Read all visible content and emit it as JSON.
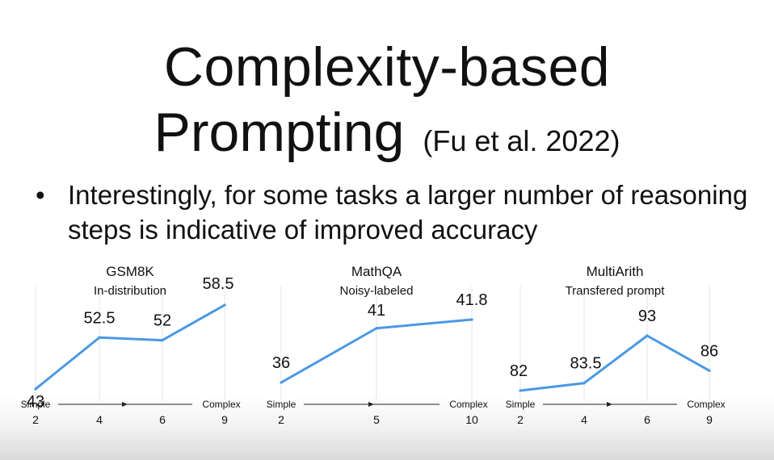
{
  "slide": {
    "title_line1": "Complexity-based",
    "title_line2": "Prompting",
    "citation": "(Fu et al. 2022)",
    "bullet_symbol": "•",
    "bullet_text": "Interestingly, for some tasks a larger number of reasoning steps is indicative of improved accuracy"
  },
  "colors": {
    "line": "#4a98e6",
    "gridline": "#e6e6e6",
    "text": "#111111"
  },
  "chart_data": [
    {
      "type": "line",
      "title": "GSM8K",
      "subtitle": "In-distribution",
      "x": [
        "2",
        "4",
        "6",
        "9"
      ],
      "values": [
        43,
        52.5,
        52,
        58.5
      ],
      "value_labels": [
        "43",
        "52.5",
        "52",
        "58.5"
      ],
      "axis_left_label": "Simple",
      "axis_right_label": "Complex",
      "grid": true
    },
    {
      "type": "line",
      "title": "MathQA",
      "subtitle": "Noisy-labeled",
      "x": [
        "2",
        "5",
        "10"
      ],
      "values": [
        36,
        41,
        41.8
      ],
      "value_labels": [
        "36",
        "41",
        "41.8"
      ],
      "axis_left_label": "Simple",
      "axis_right_label": "Complex",
      "grid": true
    },
    {
      "type": "line",
      "title": "MultiArith",
      "subtitle": "Transfered prompt",
      "x": [
        "2",
        "4",
        "6",
        "9"
      ],
      "values": [
        82,
        83.5,
        93,
        86
      ],
      "value_labels": [
        "82",
        "83.5",
        "93",
        "86"
      ],
      "axis_left_label": "Simple",
      "axis_right_label": "Complex",
      "grid": true
    }
  ]
}
